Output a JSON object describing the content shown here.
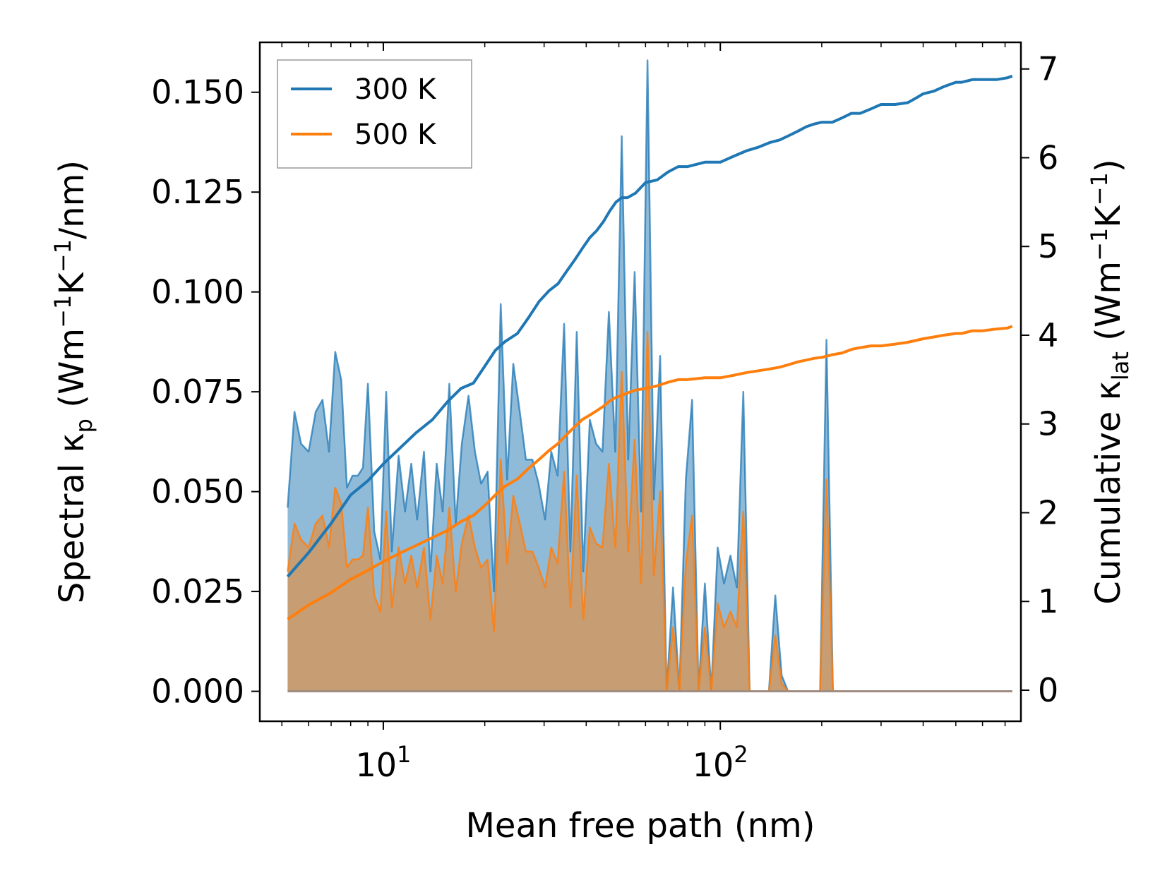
{
  "chart_data": {
    "type": "line",
    "title": "",
    "xlabel": "Mean free path (nm)",
    "ylabel_left": {
      "prefix": "Spectral κ",
      "sub": "p",
      "suffix": " (Wm",
      "sup1": "−1",
      "mid": "K",
      "sup2": "−1",
      "end": "/nm)"
    },
    "ylabel_right": {
      "prefix": "Cumulative κ",
      "sub": "lat",
      "suffix": " (Wm",
      "sup1": "−1",
      "mid": "K",
      "sup2": "−1",
      "end": ")"
    },
    "xscale": "log",
    "xlim": [
      4.3,
      780
    ],
    "ylim_left": [
      -0.0075,
      0.1625
    ],
    "ylim_right": [
      -0.35,
      7.3
    ],
    "xticks": [
      {
        "value": 10,
        "base": "10",
        "exp": "1"
      },
      {
        "value": 100,
        "base": "10",
        "exp": "2"
      }
    ],
    "yticks_left": [
      {
        "value": 0.0,
        "label": "0.000"
      },
      {
        "value": 0.025,
        "label": "0.025"
      },
      {
        "value": 0.05,
        "label": "0.050"
      },
      {
        "value": 0.075,
        "label": "0.075"
      },
      {
        "value": 0.1,
        "label": "0.100"
      },
      {
        "value": 0.125,
        "label": "0.125"
      },
      {
        "value": 0.15,
        "label": "0.150"
      }
    ],
    "yticks_right": [
      {
        "value": 0,
        "label": "0"
      },
      {
        "value": 1,
        "label": "1"
      },
      {
        "value": 2,
        "label": "2"
      },
      {
        "value": 3,
        "label": "3"
      },
      {
        "value": 4,
        "label": "4"
      },
      {
        "value": 5,
        "label": "5"
      },
      {
        "value": 6,
        "label": "6"
      },
      {
        "value": 7,
        "label": "7"
      }
    ],
    "legend": {
      "position": "top-left",
      "entries": [
        {
          "name": "300 K",
          "color": "#1f77b4"
        },
        {
          "name": "500 K",
          "color": "#ff7f0e"
        }
      ]
    },
    "colors": {
      "s300": "#1f77b4",
      "s500": "#ff7f0e",
      "fill300": "rgba(31,119,180,0.5)",
      "fill500": "rgba(255,127,14,0.5)"
    },
    "spectral": {
      "x": [
        5.2,
        5.45,
        5.7,
        6.0,
        6.3,
        6.6,
        6.9,
        7.2,
        7.5,
        7.8,
        8.1,
        8.4,
        8.7,
        9.0,
        9.4,
        9.8,
        10.2,
        10.6,
        11.1,
        11.6,
        12.1,
        12.6,
        13.2,
        13.8,
        14.4,
        15.0,
        15.7,
        16.4,
        17.1,
        17.9,
        18.7,
        19.5,
        20.4,
        21.3,
        22.3,
        23.3,
        24.3,
        25.4,
        26.5,
        27.7,
        28.9,
        30.2,
        31.5,
        32.9,
        34.4,
        35.9,
        37.5,
        39.2,
        41.0,
        42.8,
        44.7,
        46.7,
        48.8,
        51.0,
        53.3,
        55.7,
        58.2,
        60.8,
        63.5,
        66.3,
        69.3,
        72.4,
        75.6,
        79.0,
        82.5,
        86.2,
        90.0,
        94.0,
        98.2,
        102.6,
        107.2,
        112.0,
        117.0,
        122.2,
        127.7,
        133.4,
        139.4,
        145.6,
        152.1,
        158.9,
        166.0,
        173.4,
        181.2,
        189.3,
        197.8,
        206.6,
        215.8,
        225.5,
        235.6,
        246.1,
        257.1,
        268.6,
        280.6,
        293.2,
        306.3,
        320.0,
        334.3,
        349.3,
        364.9,
        381.2,
        398.3,
        416.1,
        434.7,
        454.2,
        474.5,
        495.7,
        517.9,
        541.1,
        565.3,
        590.6,
        617.0,
        644.6,
        673.5,
        703.6,
        735.1
      ],
      "k300": [
        0.046,
        0.07,
        0.062,
        0.06,
        0.07,
        0.073,
        0.06,
        0.085,
        0.078,
        0.051,
        0.054,
        0.054,
        0.056,
        0.077,
        0.04,
        0.033,
        0.075,
        0.035,
        0.059,
        0.045,
        0.057,
        0.043,
        0.06,
        0.03,
        0.057,
        0.045,
        0.077,
        0.042,
        0.062,
        0.074,
        0.06,
        0.052,
        0.055,
        0.025,
        0.097,
        0.053,
        0.082,
        0.07,
        0.058,
        0.058,
        0.052,
        0.043,
        0.06,
        0.054,
        0.092,
        0.035,
        0.09,
        0.03,
        0.068,
        0.062,
        0.06,
        0.095,
        0.06,
        0.139,
        0.058,
        0.105,
        0.045,
        0.158,
        0.048,
        0.084,
        0.0,
        0.026,
        0.0,
        0.053,
        0.073,
        0.0,
        0.027,
        0.0,
        0.036,
        0.027,
        0.034,
        0.026,
        0.075,
        0.0,
        0.0,
        0.0,
        0.0,
        0.024,
        0.004,
        0.0,
        0.0,
        0.0,
        0.0,
        0.0,
        0.0,
        0.088,
        0.0,
        0.0,
        0.0,
        0.0,
        0.0,
        0.0,
        0.0,
        0.0,
        0.0,
        0.0,
        0.0,
        0.0,
        0.0,
        0.0,
        0.0,
        0.0,
        0.0,
        0.0,
        0.0,
        0.0,
        0.0,
        0.0,
        0.0,
        0.0,
        0.0,
        0.0,
        0.0,
        0.0,
        0.0
      ],
      "k500": [
        0.03,
        0.042,
        0.038,
        0.036,
        0.042,
        0.044,
        0.036,
        0.051,
        0.047,
        0.031,
        0.033,
        0.033,
        0.034,
        0.046,
        0.024,
        0.02,
        0.045,
        0.021,
        0.036,
        0.027,
        0.034,
        0.026,
        0.036,
        0.018,
        0.034,
        0.027,
        0.046,
        0.025,
        0.037,
        0.044,
        0.036,
        0.031,
        0.033,
        0.015,
        0.058,
        0.032,
        0.049,
        0.042,
        0.035,
        0.035,
        0.031,
        0.026,
        0.036,
        0.032,
        0.055,
        0.021,
        0.054,
        0.018,
        0.041,
        0.037,
        0.036,
        0.057,
        0.036,
        0.08,
        0.035,
        0.063,
        0.027,
        0.09,
        0.029,
        0.05,
        0.0,
        0.016,
        0.0,
        0.032,
        0.044,
        0.0,
        0.016,
        0.0,
        0.022,
        0.016,
        0.02,
        0.016,
        0.045,
        0.0,
        0.0,
        0.0,
        0.0,
        0.014,
        0.002,
        0.0,
        0.0,
        0.0,
        0.0,
        0.0,
        0.0,
        0.053,
        0.0,
        0.0,
        0.0,
        0.0,
        0.0,
        0.0,
        0.0,
        0.0,
        0.0,
        0.0,
        0.0,
        0.0,
        0.0,
        0.0,
        0.0,
        0.0,
        0.0,
        0.0,
        0.0,
        0.0,
        0.0,
        0.0,
        0.0,
        0.0,
        0.0,
        0.0,
        0.0,
        0.0,
        0.0
      ]
    },
    "cumulative": {
      "x": [
        5.2,
        6.0,
        7.0,
        8.0,
        9.0,
        10.0,
        11.0,
        12.5,
        14.0,
        15.5,
        17.0,
        18.5,
        20.0,
        21.5,
        23.0,
        25.0,
        27.0,
        29.0,
        31.0,
        33.0,
        35.0,
        37.0,
        39.0,
        41.0,
        43.0,
        45.0,
        47.0,
        49.0,
        51.0,
        53.0,
        56.0,
        60.0,
        65.0,
        70.0,
        75.0,
        80.0,
        90.0,
        100.0,
        110.0,
        120.0,
        130.0,
        140.0,
        150.0,
        160.0,
        170.0,
        180.0,
        190.0,
        200.0,
        215.0,
        230.0,
        245.0,
        260.0,
        280.0,
        300.0,
        330.0,
        360.0,
        380.0,
        400.0,
        430.0,
        460.0,
        500.0,
        520.0,
        560.0,
        600.0,
        660.0,
        710.0,
        735.0
      ],
      "c300": [
        1.28,
        1.55,
        1.88,
        2.2,
        2.36,
        2.55,
        2.7,
        2.9,
        3.05,
        3.25,
        3.4,
        3.46,
        3.65,
        3.83,
        3.93,
        4.02,
        4.2,
        4.38,
        4.5,
        4.58,
        4.72,
        4.85,
        4.98,
        5.1,
        5.18,
        5.28,
        5.4,
        5.5,
        5.55,
        5.55,
        5.6,
        5.72,
        5.75,
        5.84,
        5.9,
        5.9,
        5.95,
        5.95,
        6.02,
        6.08,
        6.12,
        6.17,
        6.2,
        6.25,
        6.3,
        6.35,
        6.38,
        6.4,
        6.4,
        6.45,
        6.5,
        6.5,
        6.55,
        6.6,
        6.6,
        6.62,
        6.67,
        6.72,
        6.75,
        6.8,
        6.85,
        6.85,
        6.88,
        6.88,
        6.88,
        6.9,
        6.92
      ],
      "c500": [
        0.8,
        0.96,
        1.1,
        1.25,
        1.35,
        1.45,
        1.53,
        1.63,
        1.72,
        1.8,
        1.9,
        1.97,
        2.08,
        2.2,
        2.3,
        2.38,
        2.5,
        2.6,
        2.7,
        2.78,
        2.88,
        2.97,
        3.05,
        3.1,
        3.15,
        3.2,
        3.26,
        3.3,
        3.32,
        3.35,
        3.38,
        3.4,
        3.43,
        3.47,
        3.5,
        3.5,
        3.52,
        3.52,
        3.55,
        3.58,
        3.6,
        3.62,
        3.64,
        3.67,
        3.7,
        3.72,
        3.74,
        3.75,
        3.78,
        3.8,
        3.84,
        3.86,
        3.88,
        3.88,
        3.9,
        3.92,
        3.94,
        3.96,
        3.98,
        4.0,
        4.02,
        4.02,
        4.05,
        4.05,
        4.07,
        4.08,
        4.1
      ]
    }
  }
}
